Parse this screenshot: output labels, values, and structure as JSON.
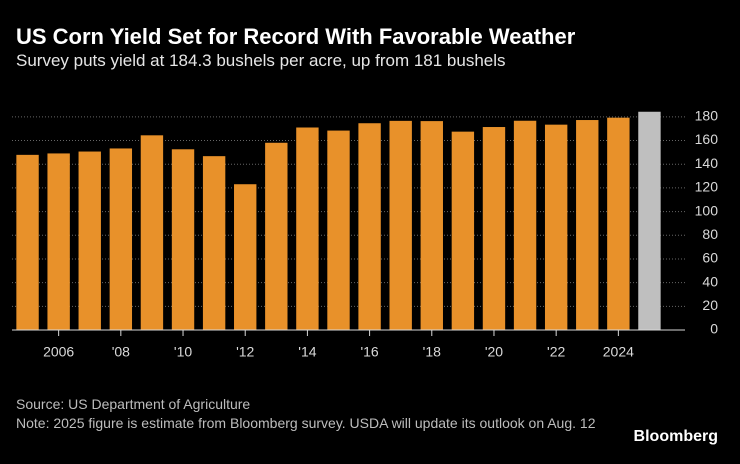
{
  "chart_data": {
    "type": "bar",
    "title": "US Corn Yield Set for Record With Favorable Weather",
    "subtitle": "Survey puts yield at 184.3 bushels per acre, up from 181 bushels",
    "categories": [
      null,
      "2006",
      null,
      "'08",
      null,
      "'10",
      null,
      "'12",
      null,
      "'14",
      null,
      "'16",
      null,
      "'18",
      null,
      "'20",
      null,
      "'22",
      null,
      "2024",
      null
    ],
    "values": [
      147.9,
      149.1,
      150.7,
      153.3,
      164.4,
      152.6,
      146.8,
      123.1,
      158.1,
      171.0,
      168.4,
      174.6,
      176.6,
      176.4,
      167.5,
      171.4,
      176.7,
      173.4,
      177.3,
      179.3,
      184.3
    ],
    "colors": [
      "#e8912a",
      "#e8912a",
      "#e8912a",
      "#e8912a",
      "#e8912a",
      "#e8912a",
      "#e8912a",
      "#e8912a",
      "#e8912a",
      "#e8912a",
      "#e8912a",
      "#e8912a",
      "#e8912a",
      "#e8912a",
      "#e8912a",
      "#e8912a",
      "#e8912a",
      "#e8912a",
      "#e8912a",
      "#e8912a",
      "#bfbfbf"
    ],
    "ylim": [
      0,
      190
    ],
    "yticks": [
      0,
      20,
      40,
      60,
      80,
      100,
      120,
      140,
      160,
      180
    ],
    "grid": true,
    "source": "Source: US Department of Agriculture",
    "note": "Note: 2025 figure is estimate from Bloomberg survey. USDA will update its outlook on Aug. 12"
  },
  "branding": "Bloomberg"
}
